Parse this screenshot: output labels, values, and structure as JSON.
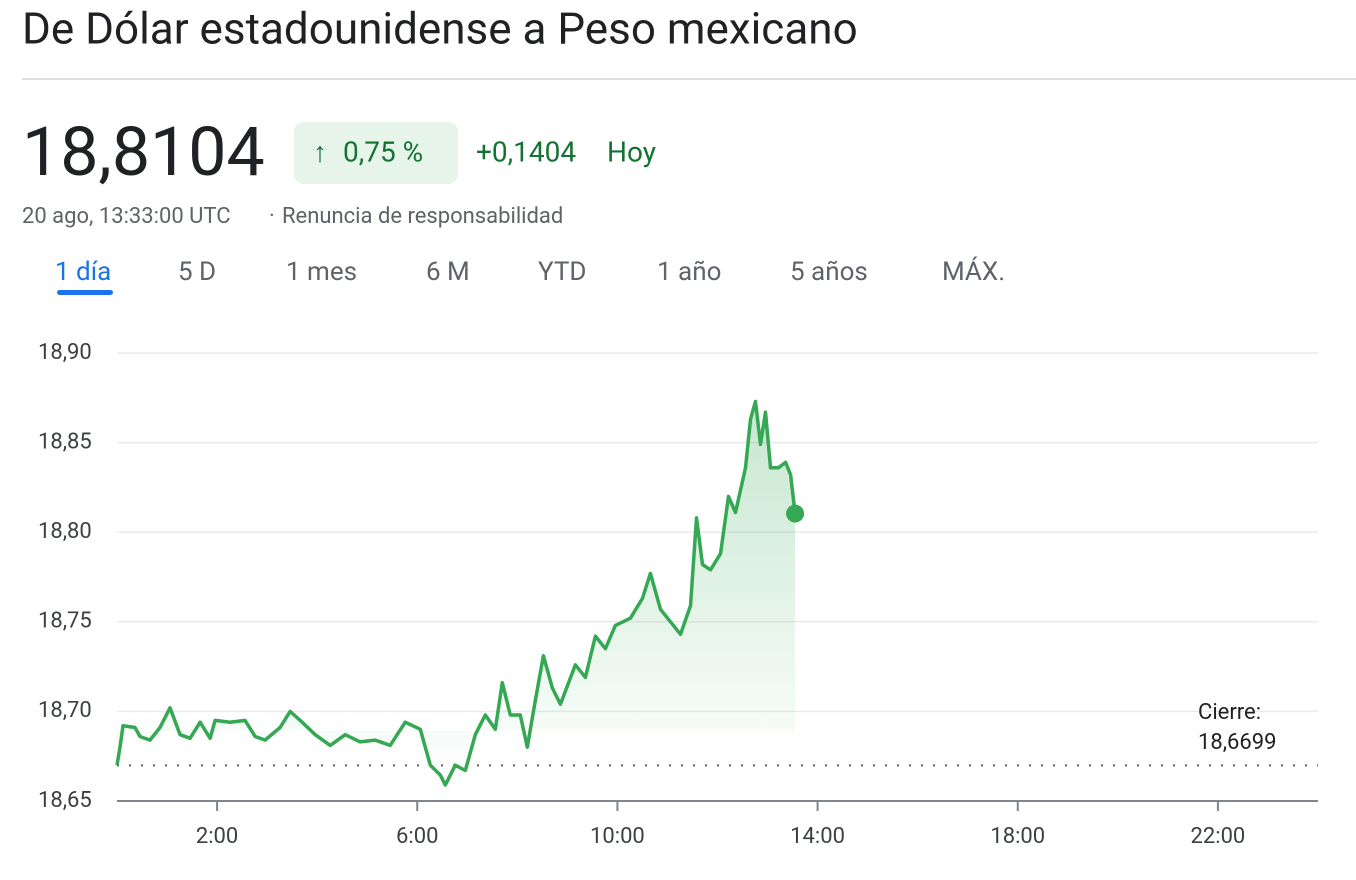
{
  "header": {
    "title": "De Dólar estadounidense a Peso mexicano",
    "price": "18,8104",
    "change_percent": "0,75 %",
    "change_arrow": "↑",
    "change_value": "+0,1404",
    "change_period": "Hoy",
    "timestamp": "20 ago, 13:33:00 UTC",
    "separator": "·",
    "disclaimer": "Renuncia de responsabilidad"
  },
  "tabs": {
    "items": [
      "1 día",
      "5 D",
      "1 mes",
      "6 M",
      "YTD",
      "1 año",
      "5 años",
      "MÁX."
    ],
    "selected": 0
  },
  "chart_data": {
    "type": "line",
    "x": [
      0,
      0.06,
      0.12,
      0.36,
      0.46,
      0.66,
      0.86,
      1.06,
      1.26,
      1.46,
      1.66,
      1.86,
      1.96,
      2.26,
      2.56,
      2.76,
      2.96,
      3.26,
      3.46,
      3.66,
      3.96,
      4.26,
      4.56,
      4.86,
      5.16,
      5.46,
      5.76,
      6.06,
      6.26,
      6.46,
      6.56,
      6.76,
      6.96,
      7.16,
      7.36,
      7.56,
      7.7,
      7.86,
      8.06,
      8.2,
      8.36,
      8.52,
      8.7,
      8.86,
      9.16,
      9.36,
      9.56,
      9.76,
      9.96,
      10.26,
      10.5,
      10.66,
      10.86,
      11.06,
      11.26,
      11.46,
      11.58,
      11.7,
      11.86,
      12.06,
      12.22,
      12.36,
      12.56,
      12.66,
      12.76,
      12.86,
      12.96,
      13.06,
      13.22,
      13.36,
      13.46,
      13.55
    ],
    "series": [
      {
        "name": "USD/MXN",
        "color": "#34a853",
        "values": [
          18.67,
          18.68,
          18.692,
          18.691,
          18.686,
          18.684,
          18.691,
          18.702,
          18.687,
          18.685,
          18.694,
          18.685,
          18.695,
          18.694,
          18.695,
          18.686,
          18.684,
          18.691,
          18.7,
          18.695,
          18.687,
          18.681,
          18.687,
          18.683,
          18.684,
          18.681,
          18.694,
          18.69,
          18.67,
          18.6645,
          18.659,
          18.67,
          18.667,
          18.687,
          18.698,
          18.69,
          18.716,
          18.698,
          18.698,
          18.68,
          18.706,
          18.731,
          18.713,
          18.704,
          18.726,
          18.719,
          18.742,
          18.735,
          18.748,
          18.752,
          18.763,
          18.777,
          18.757,
          18.75,
          18.743,
          18.759,
          18.808,
          18.782,
          18.779,
          18.788,
          18.82,
          18.811,
          18.836,
          18.863,
          18.873,
          18.849,
          18.867,
          18.836,
          18.836,
          18.839,
          18.832,
          18.8104
        ]
      }
    ],
    "xlim": [
      0,
      24
    ],
    "xticks": [
      {
        "value": 2,
        "label": "2:00"
      },
      {
        "value": 6,
        "label": "6:00"
      },
      {
        "value": 10,
        "label": "10:00"
      },
      {
        "value": 14,
        "label": "14:00"
      },
      {
        "value": 18,
        "label": "18:00"
      },
      {
        "value": 22,
        "label": "22:00"
      }
    ],
    "ylim": [
      18.65,
      18.9
    ],
    "yticks": [
      {
        "value": 18.65,
        "label": "18,65"
      },
      {
        "value": 18.7,
        "label": "18,70"
      },
      {
        "value": 18.75,
        "label": "18,75"
      },
      {
        "value": 18.8,
        "label": "18,80"
      },
      {
        "value": 18.85,
        "label": "18,85"
      },
      {
        "value": 18.9,
        "label": "18,90"
      }
    ],
    "grid": true,
    "previous_close": {
      "label": "Cierre:",
      "value": 18.6699,
      "value_label": "18,6699"
    }
  }
}
